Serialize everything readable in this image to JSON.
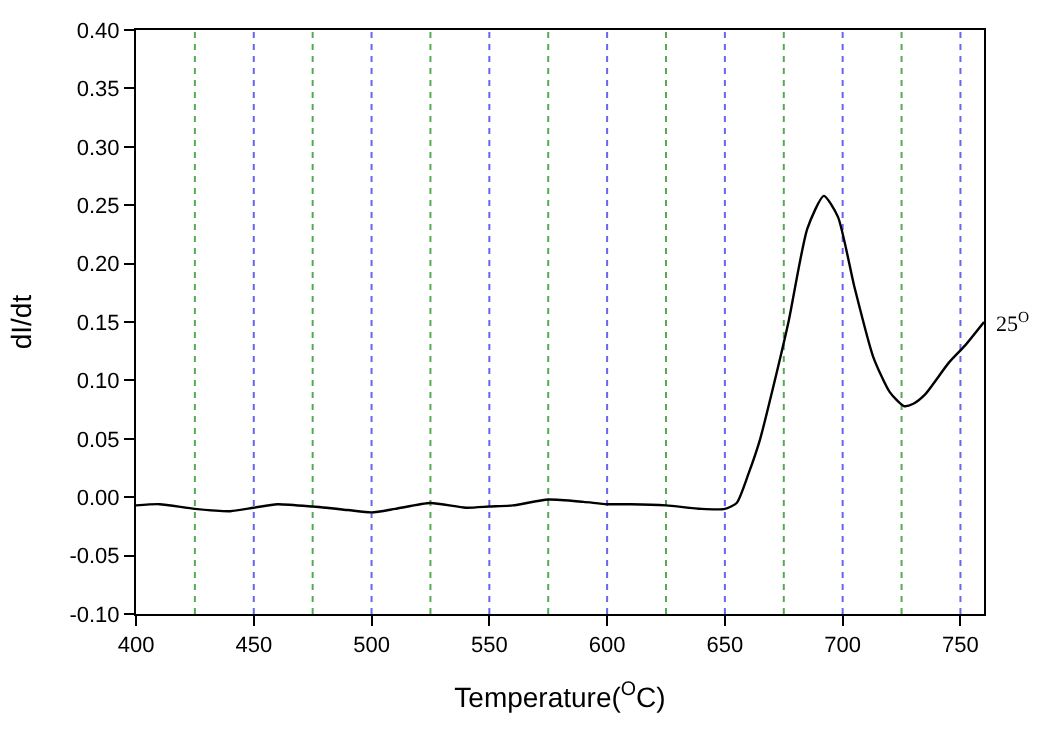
{
  "chart_data": {
    "type": "line",
    "xlabel": "Temperature($^{O}$C)",
    "ylabel": "dI/dt",
    "x": [
      400,
      410,
      425,
      440,
      450,
      460,
      475,
      490,
      500,
      510,
      525,
      540,
      550,
      560,
      575,
      590,
      600,
      610,
      625,
      640,
      650,
      655,
      660,
      665,
      670,
      677,
      685,
      692,
      698,
      705,
      713,
      720,
      726,
      730,
      735,
      745,
      752,
      760
    ],
    "series": [
      {
        "color": "#000000",
        "values": [
          -0.007,
          -0.006,
          -0.01,
          -0.012,
          -0.009,
          -0.006,
          -0.008,
          -0.011,
          -0.013,
          -0.01,
          -0.005,
          -0.009,
          -0.008,
          -0.007,
          -0.002,
          -0.004,
          -0.006,
          -0.006,
          -0.007,
          -0.01,
          -0.01,
          -0.005,
          0.02,
          0.05,
          0.09,
          0.15,
          0.23,
          0.258,
          0.24,
          0.18,
          0.12,
          0.09,
          0.078,
          0.08,
          0.088,
          0.115,
          0.13,
          0.15
        ]
      }
    ],
    "xlim": [
      400,
      760
    ],
    "xticks": [
      400,
      450,
      500,
      550,
      600,
      650,
      700,
      750
    ],
    "ylim": [
      -0.1,
      0.4
    ],
    "yticks": [
      {
        "value": -0.1,
        "label": "-0.10"
      },
      {
        "value": -0.05,
        "label": "-0.05"
      },
      {
        "value": 0,
        "label": "0.00"
      },
      {
        "value": 0.05,
        "label": "0.05"
      },
      {
        "value": 0.1,
        "label": "0.10"
      },
      {
        "value": 0.15,
        "label": "0.15"
      },
      {
        "value": 0.2,
        "label": "0.20"
      },
      {
        "value": 0.25,
        "label": "0.25"
      },
      {
        "value": 0.3,
        "label": "0.30"
      },
      {
        "value": 0.35,
        "label": "0.35"
      },
      {
        "value": 0.4,
        "label": "0.40"
      }
    ],
    "ref_lines": [
      {
        "axis": "x",
        "value": 425,
        "color": "#55aa55",
        "line_style": "dotted"
      },
      {
        "axis": "x",
        "value": 450,
        "color": "#6666ee",
        "line_style": "dotted"
      },
      {
        "axis": "x",
        "value": 475,
        "color": "#55aa55",
        "line_style": "dotted"
      },
      {
        "axis": "x",
        "value": 500,
        "color": "#6666ee",
        "line_style": "dotted"
      },
      {
        "axis": "x",
        "value": 525,
        "color": "#55aa55",
        "line_style": "dotted"
      },
      {
        "axis": "x",
        "value": 550,
        "color": "#6666ee",
        "line_style": "dotted"
      },
      {
        "axis": "x",
        "value": 575,
        "color": "#55aa55",
        "line_style": "dotted"
      },
      {
        "axis": "x",
        "value": 600,
        "color": "#6666ee",
        "line_style": "dotted"
      },
      {
        "axis": "x",
        "value": 625,
        "color": "#55aa55",
        "line_style": "dotted"
      },
      {
        "axis": "x",
        "value": 650,
        "color": "#6666ee",
        "line_style": "dotted"
      },
      {
        "axis": "x",
        "value": 675,
        "color": "#55aa55",
        "line_style": "dotted"
      },
      {
        "axis": "x",
        "value": 700,
        "color": "#6666ee",
        "line_style": "dotted"
      },
      {
        "axis": "x",
        "value": 725,
        "color": "#55aa55",
        "line_style": "dotted"
      },
      {
        "axis": "x",
        "value": 750,
        "color": "#6666ee",
        "line_style": "dotted"
      }
    ],
    "annotations": [
      "25$^{O}$"
    ],
    "grid": false,
    "marker": "none",
    "line_style": "solid"
  }
}
